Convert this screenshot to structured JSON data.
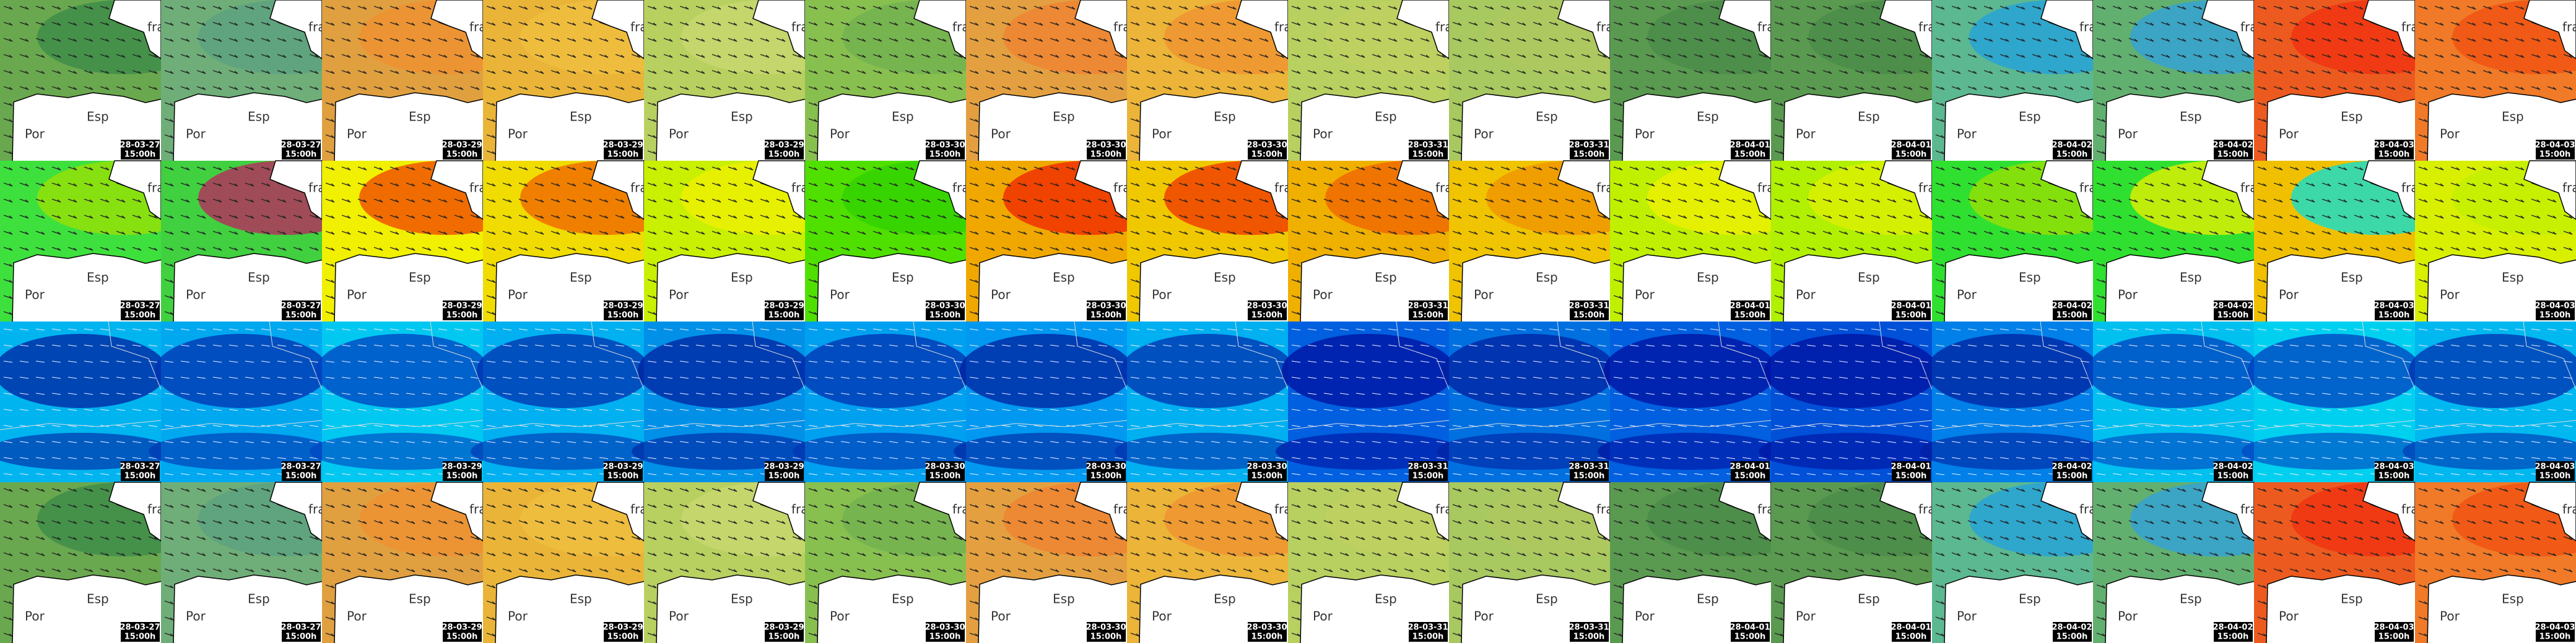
{
  "labels": {
    "fra": "fra",
    "esp": "Esp",
    "por": "Por"
  },
  "columns": [
    {
      "date": "28-03-27",
      "time": "15:00h"
    },
    {
      "date": "28-03-27",
      "time": "15:00h"
    },
    {
      "date": "28-03-29",
      "time": "15:00h"
    },
    {
      "date": "28-03-29",
      "time": "15:00h"
    },
    {
      "date": "28-03-29",
      "time": "15:00h"
    },
    {
      "date": "28-03-30",
      "time": "15:00h"
    },
    {
      "date": "28-03-30",
      "time": "15:00h"
    },
    {
      "date": "28-03-30",
      "time": "15:00h"
    },
    {
      "date": "28-03-31",
      "time": "15:00h"
    },
    {
      "date": "28-03-31",
      "time": "15:00h"
    },
    {
      "date": "28-04-01",
      "time": "15:00h"
    },
    {
      "date": "28-04-01",
      "time": "15:00h"
    },
    {
      "date": "28-04-02",
      "time": "15:00h"
    },
    {
      "date": "28-04-02",
      "time": "15:00h"
    },
    {
      "date": "28-04-03",
      "time": "15:00h"
    },
    {
      "date": "28-04-03",
      "time": "15:00h"
    }
  ]
}
